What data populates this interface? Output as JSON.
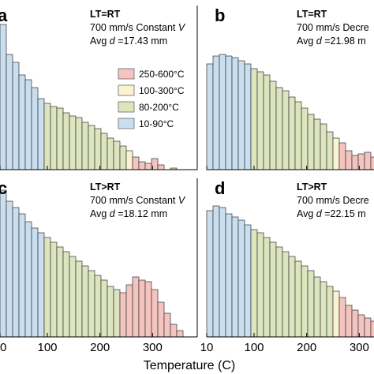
{
  "chart_data": {
    "type": "bar",
    "xlabel": "Temperature (C)",
    "xlim": [
      10,
      370
    ],
    "xticks": [
      {
        "value": 10,
        "label": "10"
      },
      {
        "value": 100,
        "label": "100"
      },
      {
        "value": 200,
        "label": "200"
      },
      {
        "value": 300,
        "label": "300"
      }
    ],
    "ylim": [
      0,
      1
    ],
    "bin_width": 12,
    "legend": {
      "placement": "panel-a-right",
      "entries": [
        {
          "label": "250-600°C",
          "color": "#f4c4c0"
        },
        {
          "label": "100-300°C",
          "color": "#faf2d2"
        },
        {
          "label": "80-200°C",
          "color": "#dde5bf"
        },
        {
          "label": "10-90°C",
          "color": "#c9dff0"
        }
      ]
    },
    "range_colors": {
      "low": "#c9dff0",
      "mid": "#dde5bf",
      "high_mid": "#faf2d2",
      "high": "#f4c4c0"
    },
    "panels": [
      {
        "letter": "a",
        "line1": "LT=RT",
        "line2_prefix": "700 mm/s Constant ",
        "line2_var": "V",
        "line3_prefix": "Avg ",
        "line3_var": "d",
        "line3_value": " =17.43 mm",
        "bin_starts": [
          10,
          22,
          34,
          46,
          58,
          70,
          82,
          94,
          106,
          118,
          130,
          142,
          154,
          166,
          178,
          190,
          202,
          214,
          226,
          238,
          250,
          262,
          274,
          286,
          298,
          310,
          322,
          334
        ],
        "values": [
          0.92,
          0.73,
          0.68,
          0.6,
          0.57,
          0.52,
          0.45,
          0.42,
          0.4,
          0.39,
          0.36,
          0.34,
          0.33,
          0.3,
          0.28,
          0.26,
          0.23,
          0.2,
          0.18,
          0.15,
          0.12,
          0.08,
          0.05,
          0.04,
          0.07,
          0.03,
          0,
          0.01
        ]
      },
      {
        "letter": "b",
        "line1": "LT=RT",
        "line2_prefix": "700 mm/s Decre",
        "line2_var": "",
        "line3_prefix": "Avg ",
        "line3_var": "d",
        "line3_value": " =21.98 m",
        "bin_starts": [
          10,
          22,
          34,
          46,
          58,
          70,
          82,
          94,
          106,
          118,
          130,
          142,
          154,
          166,
          178,
          190,
          202,
          214,
          226,
          238,
          250,
          262,
          274,
          286,
          298,
          310,
          322,
          334
        ],
        "values": [
          0.67,
          0.72,
          0.73,
          0.72,
          0.71,
          0.69,
          0.67,
          0.64,
          0.62,
          0.6,
          0.56,
          0.52,
          0.5,
          0.46,
          0.43,
          0.39,
          0.35,
          0.32,
          0.29,
          0.24,
          0.2,
          0.17,
          0.12,
          0.09,
          0.1,
          0.11,
          0.08,
          0.06
        ]
      },
      {
        "letter": "c",
        "line1": "LT>RT",
        "line2_prefix": "700 mm/s Constant ",
        "line2_var": "V",
        "line3_prefix": "Avg ",
        "line3_var": "d",
        "line3_value": " =18.12 mm",
        "bin_starts": [
          10,
          22,
          34,
          46,
          58,
          70,
          82,
          94,
          106,
          118,
          130,
          142,
          154,
          166,
          178,
          190,
          202,
          214,
          226,
          238,
          250,
          262,
          274,
          286,
          298,
          310,
          322,
          334,
          346
        ],
        "values": [
          0.93,
          0.86,
          0.82,
          0.78,
          0.73,
          0.69,
          0.66,
          0.63,
          0.6,
          0.57,
          0.54,
          0.51,
          0.48,
          0.45,
          0.42,
          0.39,
          0.36,
          0.32,
          0.3,
          0.28,
          0.33,
          0.38,
          0.36,
          0.35,
          0.3,
          0.22,
          0.15,
          0.08,
          0.04
        ]
      },
      {
        "letter": "d",
        "line1": "LT>RT",
        "line2_prefix": "700 mm/s Decre",
        "line2_var": "",
        "line3_prefix": "Avg ",
        "line3_var": "d",
        "line3_value": " =22.15 m",
        "bin_starts": [
          10,
          22,
          34,
          46,
          58,
          70,
          82,
          94,
          106,
          118,
          130,
          142,
          154,
          166,
          178,
          190,
          202,
          214,
          226,
          238,
          250,
          262,
          274,
          286,
          298,
          310,
          322,
          334
        ],
        "values": [
          0.8,
          0.83,
          0.82,
          0.78,
          0.76,
          0.74,
          0.71,
          0.68,
          0.66,
          0.63,
          0.6,
          0.57,
          0.54,
          0.51,
          0.48,
          0.45,
          0.42,
          0.38,
          0.35,
          0.32,
          0.29,
          0.25,
          0.2,
          0.17,
          0.14,
          0.12,
          0.1,
          0.07
        ]
      }
    ]
  }
}
